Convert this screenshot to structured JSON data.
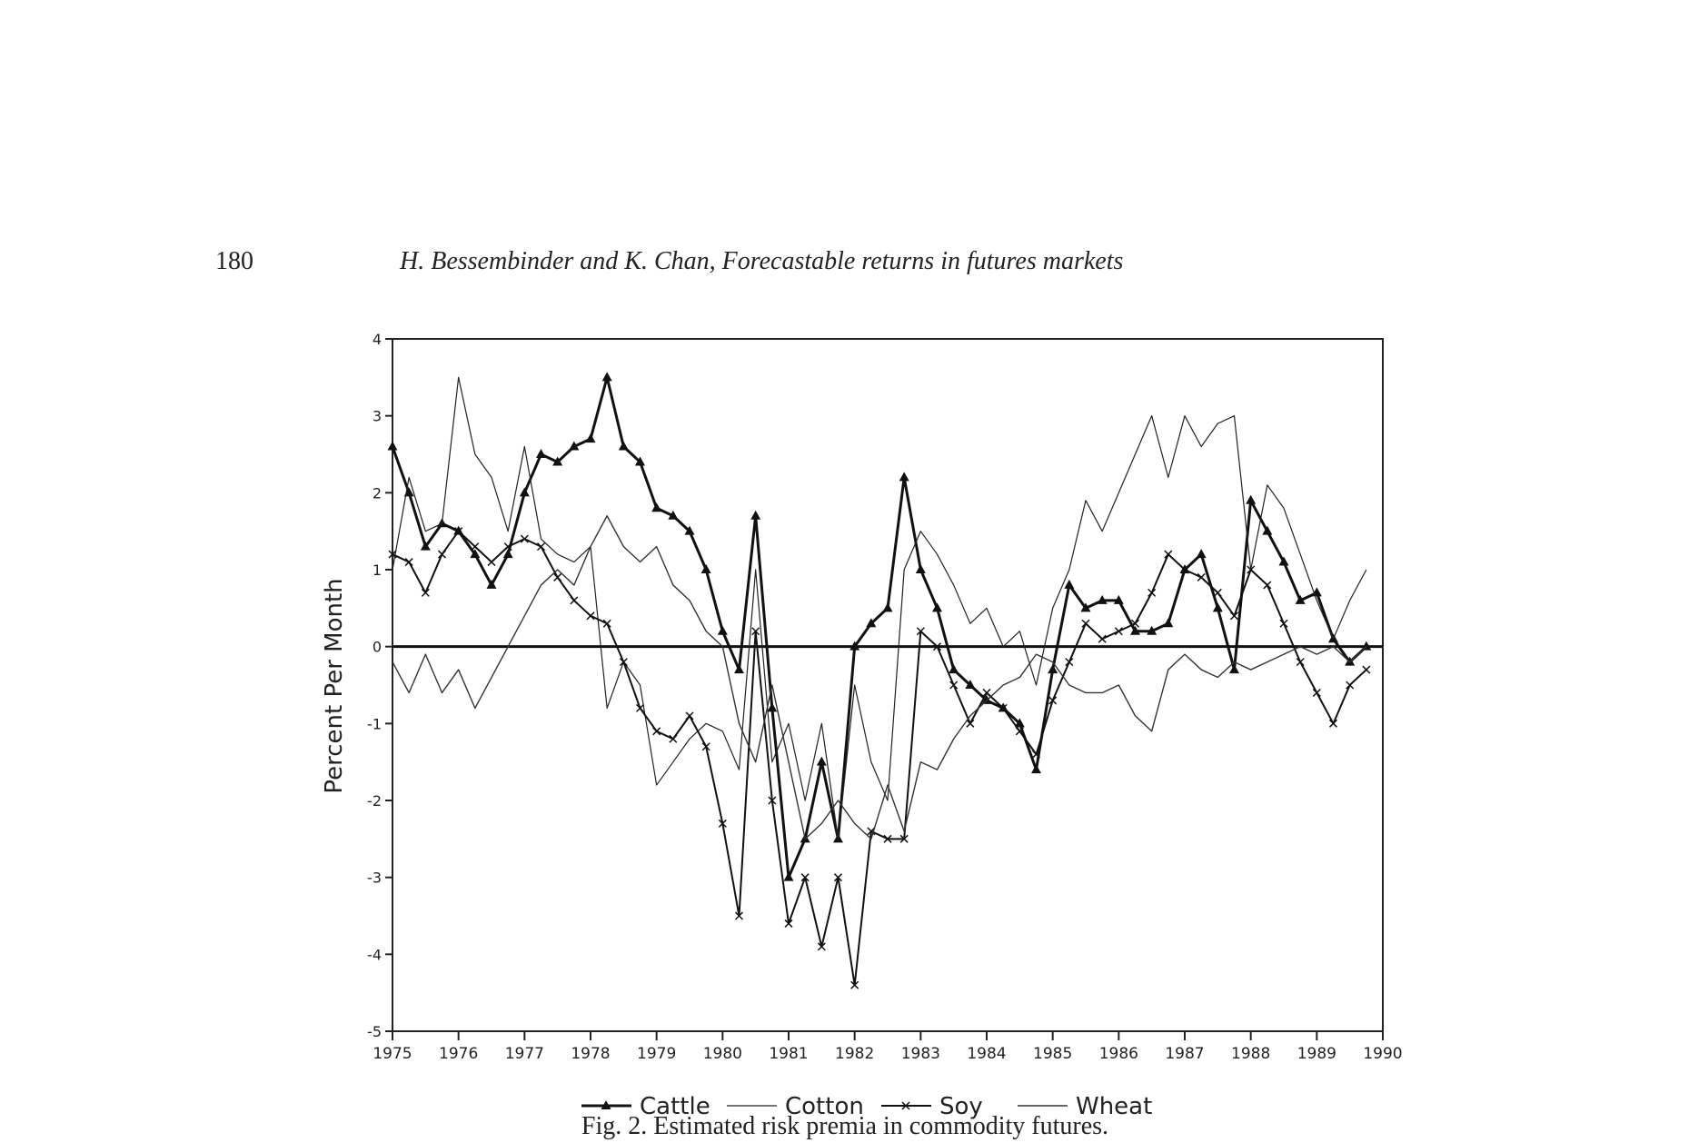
{
  "header": {
    "page_number": "180",
    "running_title": "H. Bessembinder and K. Chan, Forecastable returns in futures markets"
  },
  "chart_data": {
    "type": "line",
    "ylabel": "Percent Per Month",
    "x": [
      1975.0,
      1975.25,
      1975.5,
      1975.75,
      1976.0,
      1976.25,
      1976.5,
      1976.75,
      1977.0,
      1977.25,
      1977.5,
      1977.75,
      1978.0,
      1978.25,
      1978.5,
      1978.75,
      1979.0,
      1979.25,
      1979.5,
      1979.75,
      1980.0,
      1980.25,
      1980.5,
      1980.75,
      1981.0,
      1981.25,
      1981.5,
      1981.75,
      1982.0,
      1982.25,
      1982.5,
      1982.75,
      1983.0,
      1983.25,
      1983.5,
      1983.75,
      1984.0,
      1984.25,
      1984.5,
      1984.75,
      1985.0,
      1985.25,
      1985.5,
      1985.75,
      1986.0,
      1986.25,
      1986.5,
      1986.75,
      1987.0,
      1987.25,
      1987.5,
      1987.75,
      1988.0,
      1988.25,
      1988.5,
      1988.75,
      1989.0,
      1989.25,
      1989.5,
      1989.75
    ],
    "series": [
      {
        "name": "Cattle",
        "color": "#111111",
        "width": 3,
        "marker": "triangle",
        "values": [
          2.6,
          2.0,
          1.3,
          1.6,
          1.5,
          1.2,
          0.8,
          1.2,
          2.0,
          2.5,
          2.4,
          2.6,
          2.7,
          3.5,
          2.6,
          2.4,
          1.8,
          1.7,
          1.5,
          1.0,
          0.2,
          -0.3,
          1.7,
          -0.8,
          -3.0,
          -2.5,
          -1.5,
          -2.5,
          0.0,
          0.3,
          0.5,
          2.2,
          1.0,
          0.5,
          -0.3,
          -0.5,
          -0.7,
          -0.8,
          -1.0,
          -1.6,
          -0.3,
          0.8,
          0.5,
          0.6,
          0.6,
          0.2,
          0.2,
          0.3,
          1.0,
          1.2,
          0.5,
          -0.3,
          1.9,
          1.5,
          1.1,
          0.6,
          0.7,
          0.1,
          -0.2,
          0.0
        ]
      },
      {
        "name": "Cotton",
        "color": "#222222",
        "width": 1.2,
        "marker": "none",
        "values": [
          1.0,
          2.2,
          1.5,
          1.6,
          3.5,
          2.5,
          2.2,
          1.5,
          2.6,
          1.4,
          1.2,
          1.1,
          1.3,
          -0.8,
          -0.2,
          -0.5,
          -1.8,
          -1.5,
          -1.2,
          -1.0,
          -1.1,
          -1.6,
          1.0,
          -1.5,
          -1.0,
          -2.0,
          -1.0,
          -2.5,
          -0.5,
          -1.5,
          -2.0,
          1.0,
          1.5,
          1.2,
          0.8,
          0.3,
          0.5,
          0.0,
          0.2,
          -0.5,
          0.5,
          1.0,
          1.9,
          1.5,
          2.0,
          2.5,
          3.0,
          2.2,
          3.0,
          2.6,
          2.9,
          3.0,
          1.0,
          2.1,
          1.8,
          1.2,
          0.6,
          0.1,
          0.6,
          1.0
        ]
      },
      {
        "name": "Soy",
        "color": "#111111",
        "width": 2,
        "marker": "x",
        "values": [
          1.2,
          1.1,
          0.7,
          1.2,
          1.5,
          1.3,
          1.1,
          1.3,
          1.4,
          1.3,
          0.9,
          0.6,
          0.4,
          0.3,
          -0.2,
          -0.8,
          -1.1,
          -1.2,
          -0.9,
          -1.3,
          -2.3,
          -3.5,
          0.2,
          -2.0,
          -3.6,
          -3.0,
          -3.9,
          -3.0,
          -4.4,
          -2.4,
          -2.5,
          -2.5,
          0.2,
          0.0,
          -0.5,
          -1.0,
          -0.6,
          -0.8,
          -1.1,
          -1.4,
          -0.7,
          -0.2,
          0.3,
          0.1,
          0.2,
          0.3,
          0.7,
          1.2,
          1.0,
          0.9,
          0.7,
          0.4,
          1.0,
          0.8,
          0.3,
          -0.2,
          -0.6,
          -1.0,
          -0.5,
          -0.3
        ]
      },
      {
        "name": "Wheat",
        "color": "#333333",
        "width": 1.4,
        "marker": "none",
        "values": [
          -0.2,
          -0.6,
          -0.1,
          -0.6,
          -0.3,
          -0.8,
          -0.4,
          0.0,
          0.4,
          0.8,
          1.0,
          0.8,
          1.3,
          1.7,
          1.3,
          1.1,
          1.3,
          0.8,
          0.6,
          0.2,
          0.0,
          -1.0,
          -1.5,
          -0.5,
          -1.5,
          -2.5,
          -2.3,
          -2.0,
          -2.3,
          -2.5,
          -1.8,
          -2.4,
          -1.5,
          -1.6,
          -1.2,
          -0.9,
          -0.7,
          -0.5,
          -0.4,
          -0.1,
          -0.2,
          -0.5,
          -0.6,
          -0.6,
          -0.5,
          -0.9,
          -1.1,
          -0.3,
          -0.1,
          -0.3,
          -0.4,
          -0.2,
          -0.3,
          -0.2,
          -0.1,
          0.0,
          -0.1,
          0.0,
          -0.2,
          0.0
        ]
      }
    ],
    "xlim": [
      1975,
      1990
    ],
    "xticks": [
      1975,
      1976,
      1977,
      1978,
      1979,
      1980,
      1981,
      1982,
      1983,
      1984,
      1985,
      1986,
      1987,
      1988,
      1989,
      1990
    ],
    "ylim": [
      -5,
      4
    ],
    "yticks": [
      -5,
      -4,
      -3,
      -2,
      -1,
      0,
      1,
      2,
      3,
      4
    ],
    "zero_line": true,
    "legend": "bottom"
  },
  "caption": "Fig. 2. Estimated risk premia in commodity futures."
}
